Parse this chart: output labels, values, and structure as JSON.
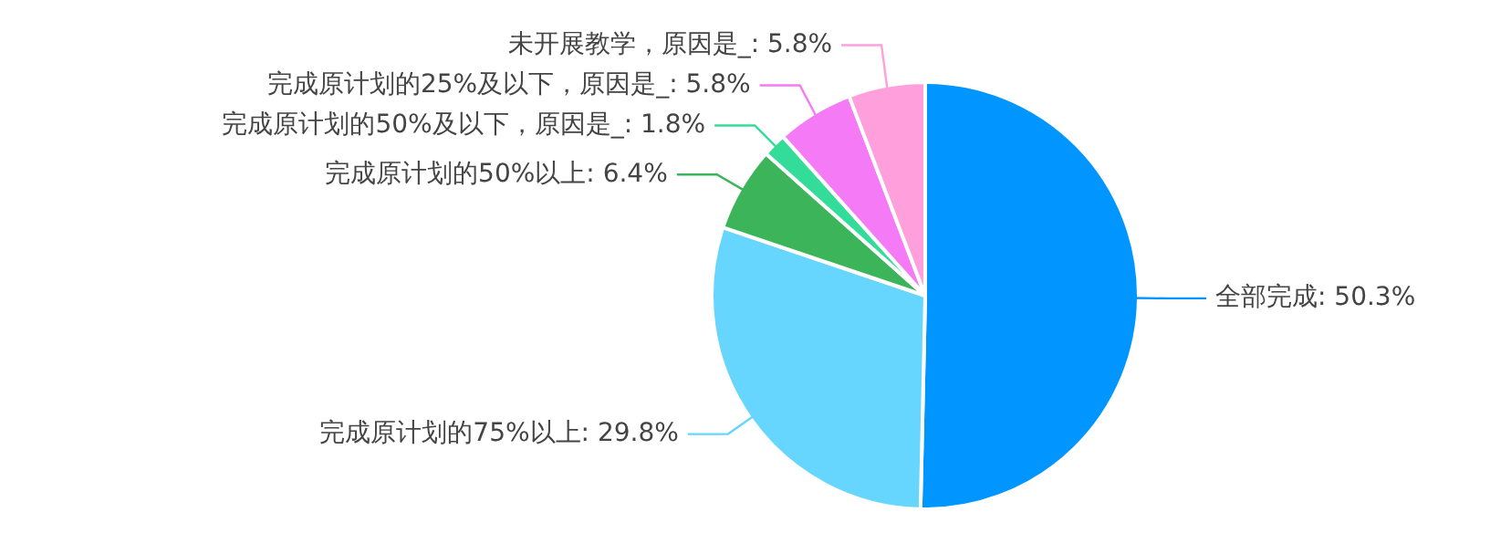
{
  "chart_data": {
    "type": "pie",
    "categories": [
      "全部完成",
      "完成原计划的75%以上",
      "完成原计划的50%以上",
      "完成原计划的50%及以下，原因是_",
      "完成原计划的25%及以下，原因是_",
      "未开展教学，原因是_"
    ],
    "values": [
      50.3,
      29.8,
      6.4,
      1.8,
      5.8,
      5.8
    ],
    "value_labels": [
      ": 50.3%",
      ": 29.8%",
      ": 6.4%",
      ": 1.8%",
      ": 5.8%",
      ": 5.8%"
    ],
    "colors": [
      "#0095ff",
      "#66d6ff",
      "#3cb55a",
      "#33dd99",
      "#f57af5",
      "#ffa0dc"
    ],
    "legend": false
  }
}
